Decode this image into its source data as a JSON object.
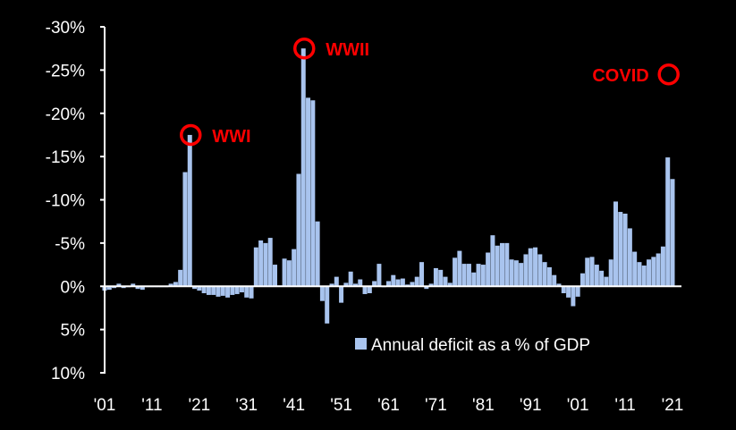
{
  "chart_data": {
    "type": "bar",
    "title": "",
    "xlabel": "",
    "ylabel": "",
    "ylim": [
      10,
      -30
    ],
    "y_axis_inverted": true,
    "y_ticks": [
      "-30%",
      "-25%",
      "-20%",
      "-15%",
      "-10%",
      "-5%",
      "0%",
      "5%",
      "10%"
    ],
    "x_ticks": [
      "'01",
      "'11",
      "'21",
      "'31",
      "'41",
      "'51",
      "'61",
      "'71",
      "'81",
      "'91",
      "'01",
      "'11",
      "'21"
    ],
    "x_range": [
      1901,
      2021
    ],
    "grid": false,
    "colors": {
      "bar": "#a9c4ee",
      "axis": "#ffffff",
      "annotation": "#ff0000",
      "background": "#000000"
    },
    "legend": {
      "position": "bottom-right",
      "label": "Annual deficit as a % of GDP"
    },
    "series": [
      {
        "name": "Annual deficit as a % of GDP",
        "x": [
          1901,
          1902,
          1903,
          1904,
          1905,
          1906,
          1907,
          1908,
          1909,
          1910,
          1911,
          1912,
          1913,
          1914,
          1915,
          1916,
          1917,
          1918,
          1919,
          1920,
          1921,
          1922,
          1923,
          1924,
          1925,
          1926,
          1927,
          1928,
          1929,
          1930,
          1931,
          1932,
          1933,
          1934,
          1935,
          1936,
          1937,
          1938,
          1939,
          1940,
          1941,
          1942,
          1943,
          1944,
          1945,
          1946,
          1947,
          1948,
          1949,
          1950,
          1951,
          1952,
          1953,
          1954,
          1955,
          1956,
          1957,
          1958,
          1959,
          1960,
          1961,
          1962,
          1963,
          1964,
          1965,
          1966,
          1967,
          1968,
          1969,
          1970,
          1971,
          1972,
          1973,
          1974,
          1975,
          1976,
          1977,
          1978,
          1979,
          1980,
          1981,
          1982,
          1983,
          1984,
          1985,
          1986,
          1987,
          1988,
          1989,
          1990,
          1991,
          1992,
          1993,
          1994,
          1995,
          1996,
          1997,
          1998,
          1999,
          2000,
          2001,
          2002,
          2003,
          2004,
          2005,
          2006,
          2007,
          2008,
          2009,
          2010,
          2011,
          2012,
          2013,
          2014,
          2015,
          2016,
          2017,
          2018,
          2019,
          2020,
          2021
        ],
        "values": [
          0.5,
          0.4,
          0.2,
          -0.3,
          0.2,
          0.1,
          -0.3,
          0.3,
          0.4,
          0.1,
          0.1,
          0.1,
          0.1,
          0.1,
          -0.3,
          -0.5,
          -1.9,
          -13.2,
          -17.5,
          0.3,
          0.5,
          0.8,
          1.0,
          1.0,
          1.2,
          1.1,
          1.3,
          1.0,
          0.9,
          0.7,
          1.3,
          1.4,
          -4.5,
          -5.3,
          -5.0,
          -5.6,
          -2.5,
          -0.1,
          -3.2,
          -3.0,
          -4.3,
          -13.0,
          -27.5,
          -21.8,
          -21.5,
          -7.5,
          1.7,
          4.3,
          -0.3,
          -1.1,
          1.9,
          -0.4,
          -1.7,
          -0.3,
          -0.8,
          0.9,
          0.8,
          -0.6,
          -2.6,
          0.1,
          -0.6,
          -1.3,
          -0.8,
          -0.9,
          -0.2,
          -0.5,
          -1.1,
          -2.8,
          0.3,
          -0.3,
          -2.1,
          -1.9,
          -1.1,
          -0.4,
          -3.3,
          -4.1,
          -2.6,
          -2.6,
          -1.6,
          -2.6,
          -2.5,
          -3.9,
          -5.9,
          -4.7,
          -5.0,
          -5.0,
          -3.1,
          -3.0,
          -2.7,
          -3.7,
          -4.4,
          -4.5,
          -3.7,
          -2.8,
          -2.2,
          -1.3,
          -0.3,
          0.8,
          1.3,
          2.3,
          1.2,
          -1.5,
          -3.3,
          -3.4,
          -2.5,
          -1.8,
          -1.1,
          -3.1,
          -9.8,
          -8.6,
          -8.4,
          -6.7,
          -4.0,
          -2.8,
          -2.4,
          -3.1,
          -3.4,
          -3.8,
          -4.6,
          -14.9,
          -12.4
        ]
      }
    ],
    "annotations": [
      {
        "label": "WWI",
        "x": 1919,
        "y": -17.5
      },
      {
        "label": "WWII",
        "x": 1943,
        "y": -27.5
      },
      {
        "label": "COVID",
        "x": 2020,
        "y": -24.5
      }
    ]
  }
}
